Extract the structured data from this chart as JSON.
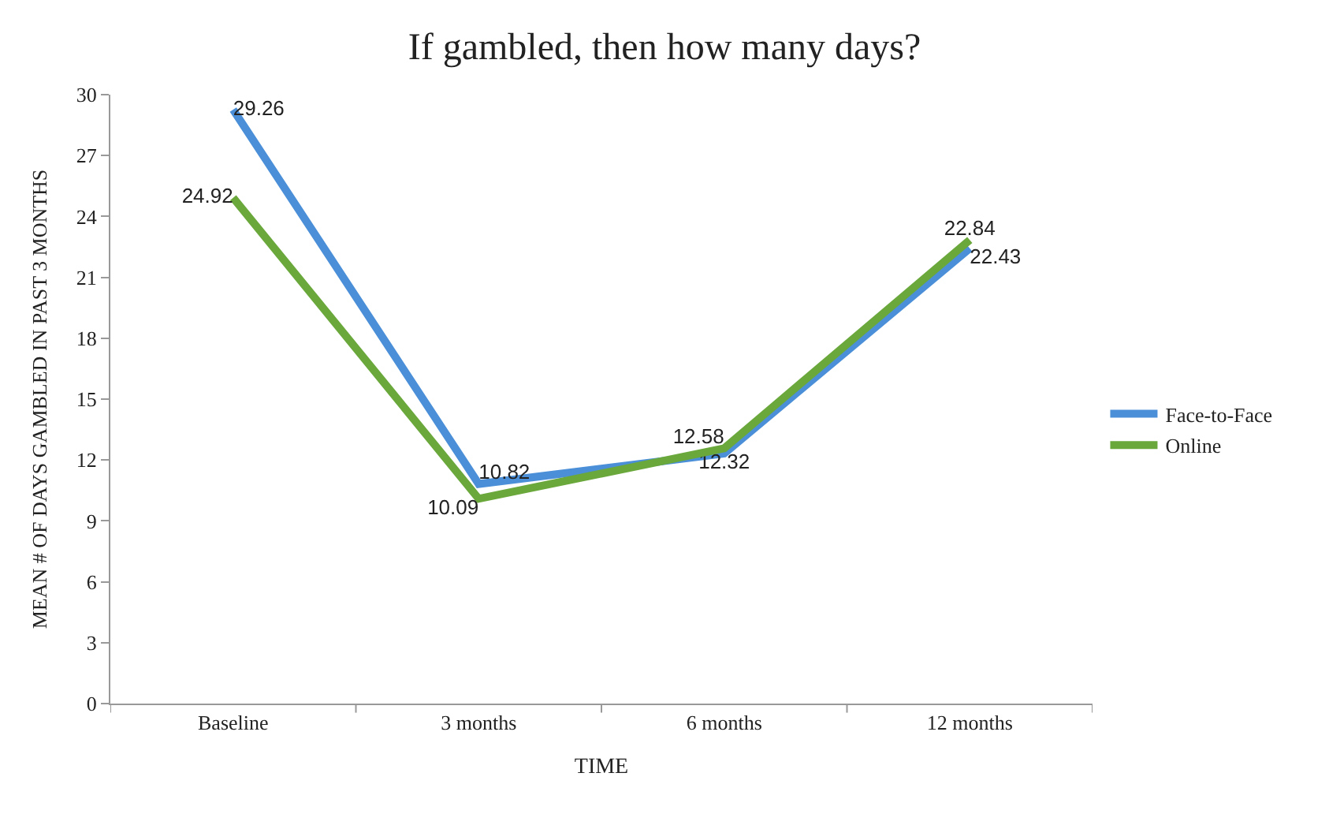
{
  "chart_data": {
    "type": "line",
    "title": "If gambled, then how many days?",
    "xlabel": "TIME",
    "ylabel": "MEAN # OF DAYS GAMBLED IN PAST 3 MONTHS",
    "categories": [
      "Baseline",
      "3 months",
      "6 months",
      "12 months"
    ],
    "series": [
      {
        "name": "Face-to-Face",
        "color": "#4a8fd8",
        "values": [
          29.26,
          10.82,
          12.32,
          22.43
        ]
      },
      {
        "name": "Online",
        "color": "#6aa83c",
        "values": [
          24.92,
          10.09,
          12.58,
          22.84
        ]
      }
    ],
    "ylim": [
      0,
      30
    ],
    "yticks": [
      0,
      3,
      6,
      9,
      12,
      15,
      18,
      21,
      24,
      27,
      30
    ],
    "legend": "right",
    "marker": "none",
    "line_style": "solid",
    "data_labels": true
  }
}
